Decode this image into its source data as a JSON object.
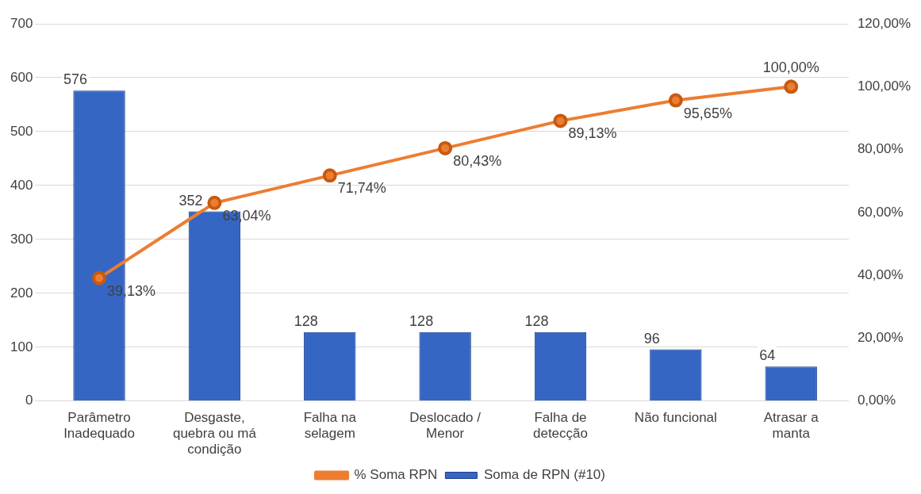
{
  "chart_data": {
    "type": "bar",
    "categories": [
      "Parâmetro Inadequado",
      "Desgaste, quebra ou má condição",
      "Falha na selagem",
      "Deslocado / Menor",
      "Falha de detecção",
      "Não funcional",
      "Atrasar a manta"
    ],
    "series": [
      {
        "name": "Soma de RPN (#10)",
        "color": "#3566c4",
        "values": [
          576,
          352,
          128,
          128,
          128,
          96,
          64
        ],
        "value_labels": [
          "576",
          "352",
          "128",
          "128",
          "128",
          "96",
          "64"
        ]
      },
      {
        "name": "% Soma RPN",
        "type": "line",
        "axis": "y2",
        "color": "#ed7d31",
        "values": [
          39.13,
          63.04,
          71.74,
          80.43,
          89.13,
          95.65,
          100.0
        ],
        "value_labels": [
          "39,13%",
          "63,04%",
          "71,74%",
          "80,43%",
          "89,13%",
          "95,65%",
          "100,00%"
        ]
      }
    ],
    "ylim": [
      0,
      700
    ],
    "yticks": [
      0,
      100,
      200,
      300,
      400,
      500,
      600,
      700
    ],
    "y2lim": [
      0,
      120
    ],
    "y2ticks": [
      {
        "value": 0,
        "label": "0,00%"
      },
      {
        "value": 20,
        "label": "20,00%"
      },
      {
        "value": 40,
        "label": "40,00%"
      },
      {
        "value": 60,
        "label": "60,00%"
      },
      {
        "value": 80,
        "label": "80,00%"
      },
      {
        "value": 100,
        "label": "100,00%"
      },
      {
        "value": 120,
        "label": "120,00%"
      }
    ],
    "grid": "y",
    "legend": "bottom",
    "marker": "circle",
    "line_style": "solid"
  }
}
